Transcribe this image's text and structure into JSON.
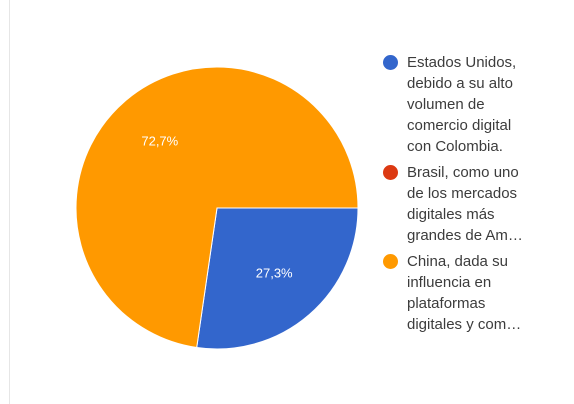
{
  "chart_data": {
    "type": "pie",
    "series": [
      {
        "name": "Estados Unidos, debido a su alto volumen de comercio digital con Colombia.",
        "legend_lines": "Estados Unidos,\ndebido a su alto\nvolumen de\ncomercio digital\ncon Colombia.",
        "value": 27.3,
        "label": "27,3%",
        "color": "#3366cc"
      },
      {
        "name": "Brasil, como uno de los mercados digitales más grandes de Am…",
        "legend_lines": "Brasil, como uno\nde los mercados\ndigitales más\ngrandes de Am…",
        "value": 0,
        "label": "",
        "color": "#dc3912"
      },
      {
        "name": "China, dada su influencia en plataformas digitales y com…",
        "legend_lines": "China, dada su\ninfluencia en\nplataformas\ndigitales y com…",
        "value": 72.7,
        "label": "72,7%",
        "color": "#ff9900"
      }
    ],
    "legend_position": "right"
  }
}
